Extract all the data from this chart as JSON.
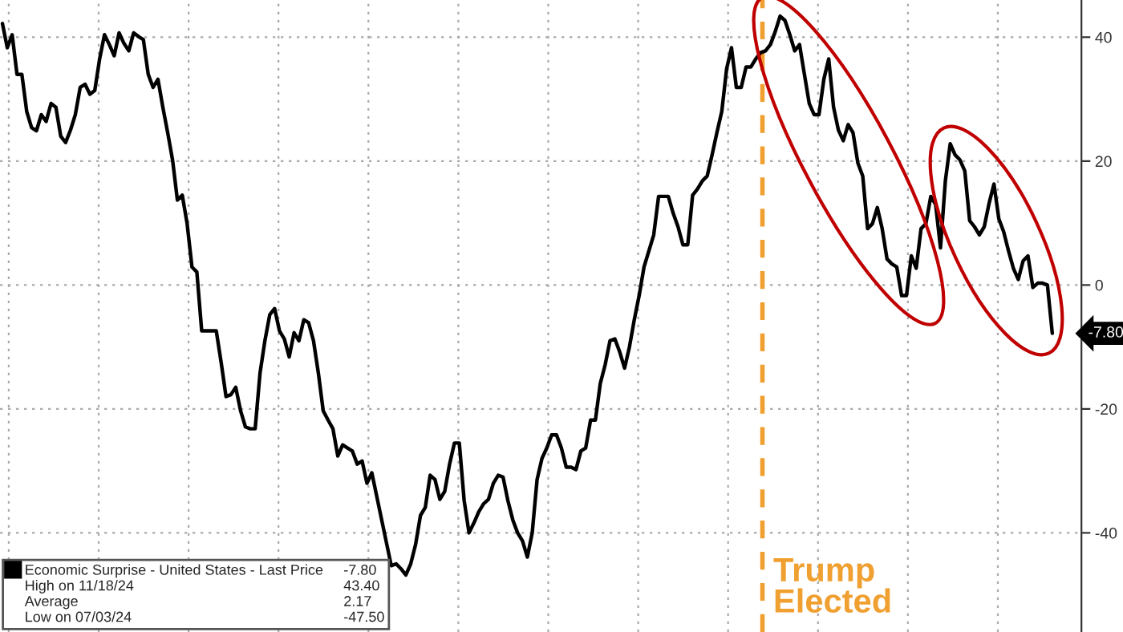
{
  "chart_data": {
    "type": "line",
    "categories": [
      null,
      null,
      null,
      null,
      null,
      null,
      null,
      null,
      null,
      null,
      null,
      null,
      null,
      null,
      null,
      null,
      null,
      null,
      null,
      null,
      null,
      null,
      null,
      null,
      null,
      null,
      null,
      null,
      null,
      null,
      null,
      null,
      null,
      null,
      null,
      null,
      null,
      null,
      null,
      null,
      null,
      null,
      null,
      null,
      null,
      null,
      null,
      null,
      null,
      null,
      null,
      null,
      null,
      null,
      null,
      null,
      null,
      null,
      null,
      null,
      null,
      null,
      null,
      null,
      null,
      null,
      null,
      null,
      null,
      null,
      null,
      null,
      null,
      null,
      null,
      null,
      null,
      null,
      null,
      null,
      null,
      null,
      null,
      null,
      null,
      null,
      null,
      null,
      null,
      null,
      null,
      null,
      null,
      null,
      null,
      null,
      null,
      null,
      null,
      null,
      null,
      null,
      null,
      null,
      null,
      null,
      null,
      null,
      null,
      null,
      null,
      null,
      null,
      null,
      null,
      null,
      null,
      null,
      null,
      null,
      null,
      null,
      null,
      null,
      null,
      null,
      null,
      null,
      null,
      null,
      null,
      null,
      null,
      null,
      null,
      null,
      null,
      null,
      null,
      null,
      null,
      null,
      null,
      null,
      null,
      null,
      null,
      null,
      null,
      null,
      null,
      null,
      null,
      null,
      null,
      null,
      null,
      null,
      null,
      null,
      null,
      null,
      null,
      null,
      null,
      null,
      null,
      null,
      null,
      null,
      null,
      null,
      null,
      null,
      null,
      null,
      null,
      null,
      null,
      null,
      null,
      null,
      null,
      null,
      null,
      null,
      null,
      null,
      null,
      null,
      null,
      null,
      null,
      null,
      null,
      null,
      null,
      null,
      null,
      null,
      null,
      null,
      null,
      null,
      null,
      null,
      null,
      null,
      null,
      null,
      null,
      null,
      null,
      null,
      null,
      null,
      null
    ],
    "series": [
      {
        "name": "Economic Surprise - United States - Last Price",
        "color": "#000000",
        "values": [
          42.2,
          38.3,
          40.4,
          34,
          34,
          28,
          25.4,
          24.9,
          27.5,
          26.4,
          29.3,
          28.7,
          24,
          23,
          25,
          27.5,
          31.9,
          32.4,
          30.8,
          31.4,
          36.5,
          40.4,
          38.8,
          37,
          40.7,
          39,
          37.8,
          40.7,
          40.1,
          39.6,
          34,
          31.9,
          33.2,
          28.7,
          24.6,
          20.2,
          13.7,
          14.5,
          9.9,
          2.9,
          2.1,
          -7.4,
          -7.4,
          -7.4,
          -7.4,
          -12.5,
          -18,
          -17.7,
          -16.5,
          -20.3,
          -22.9,
          -23.2,
          -23.2,
          -14.2,
          -9,
          -4.8,
          -3.8,
          -7.4,
          -8.7,
          -11.6,
          -7.7,
          -9,
          -5.6,
          -6.1,
          -9,
          -14.2,
          -20.3,
          -21.8,
          -23.2,
          -27.6,
          -25.8,
          -26.3,
          -26.8,
          -28.9,
          -28.4,
          -32,
          -30.3,
          null,
          null,
          null,
          -45.3,
          -45,
          -45.8,
          -46.8,
          -45,
          -41.9,
          -37.2,
          -35.9,
          -30.7,
          -31.4,
          -34.6,
          -33.3,
          -28.9,
          -25.5,
          -25.5,
          -34.8,
          -40,
          -38.4,
          -36.6,
          -35.3,
          -34.6,
          -32,
          -30.7,
          -31,
          -34.8,
          -37.9,
          -40,
          -41.3,
          -43.9,
          -40,
          -31.4,
          -28,
          -26.3,
          -24.2,
          -24.2,
          -26.3,
          -29.4,
          -29.4,
          -29.8,
          -26.8,
          -26.3,
          -21.8,
          -21.8,
          -15.9,
          -12.9,
          -9,
          -8.7,
          -10.8,
          -13.4,
          -10,
          -5.6,
          -1.7,
          2.9,
          5.5,
          8.1,
          14.3,
          14.3,
          14.3,
          11.6,
          9.4,
          6.5,
          6.5,
          14.5,
          15.5,
          16.8,
          17.6,
          21,
          24.6,
          28,
          34.9,
          38.3,
          31.9,
          31.9,
          35.2,
          35.2,
          36.5,
          37.5,
          37.8,
          38.8,
          40.9,
          43.4,
          42.7,
          40.4,
          37.8,
          38.8,
          34,
          29.3,
          27.5,
          27.5,
          33.2,
          36.5,
          28.7,
          25,
          23.3,
          25.9,
          24.6,
          19.7,
          17.6,
          9.1,
          9.9,
          12.5,
          9.1,
          4.2,
          3.4,
          2.9,
          -1.7,
          -1.7,
          4.7,
          2.7,
          9.1,
          9.9,
          14.3,
          13,
          6,
          16.8,
          22.8,
          21,
          20.2,
          18.4,
          10.4,
          9.4,
          8.1,
          9.4,
          13.2,
          16.3,
          10.7,
          8.6,
          5.5,
          2.7,
          0.9,
          3.9,
          4.7,
          -0.4,
          0.3,
          0.3,
          0,
          -7.8
        ]
      }
    ],
    "ylim": [
      -56,
      46
    ],
    "yticks": [
      -40,
      -20,
      0,
      20,
      40
    ],
    "grid": true,
    "legend": "bottom left",
    "annotations": [
      "-7.80",
      "Trump\nElected",
      "-7.80",
      "High on 11/18/24",
      "43.40",
      "Average",
      "2.17",
      "Low on 07/03/24",
      "-47.50"
    ]
  }
}
